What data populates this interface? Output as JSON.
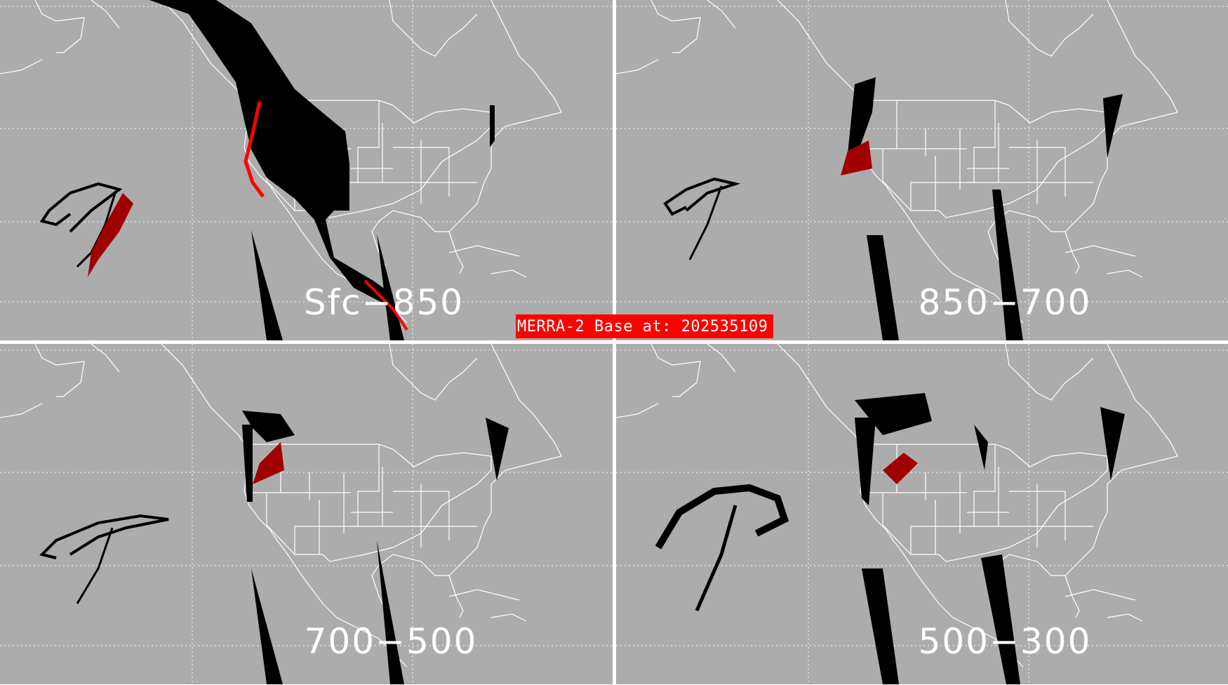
{
  "banner": {
    "text": "MERRA-2 Base at: 202535109",
    "color": "#ff0000"
  },
  "panels": [
    {
      "label": "Sfc−850"
    },
    {
      "label": "850−700"
    },
    {
      "label": "700−500"
    },
    {
      "label": "500−300"
    }
  ],
  "colors": {
    "background": "#acacac",
    "coast": "#ffffff",
    "mask": "#000000",
    "highlight": "#ff0000",
    "highlight_dark": "#a00000"
  }
}
